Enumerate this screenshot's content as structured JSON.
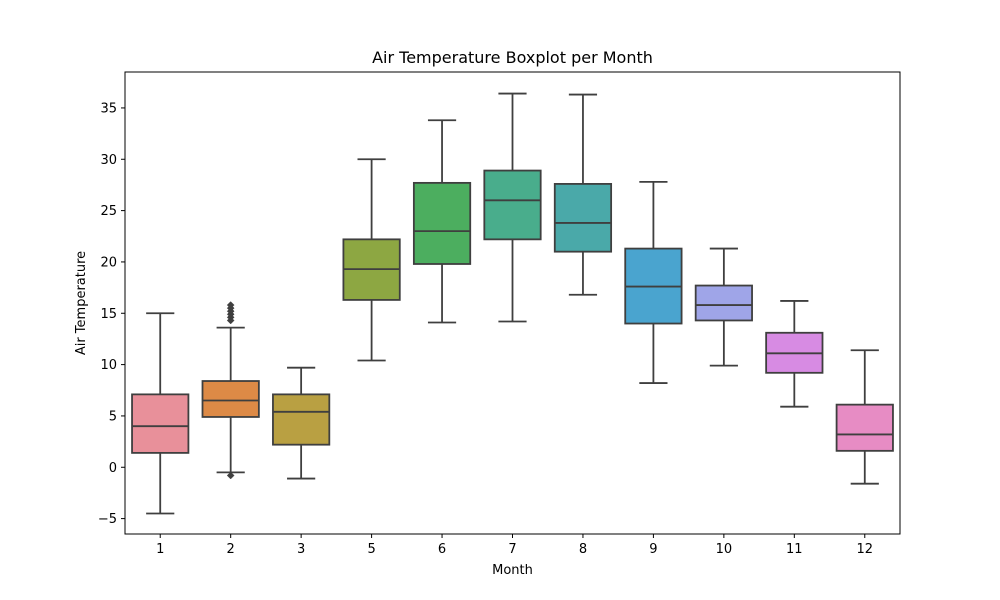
{
  "chart_data": {
    "type": "box",
    "title": "Air Temperature Boxplot per Month",
    "xlabel": "Month",
    "ylabel": "Air Temperature",
    "ylim": [
      -6.5,
      38.5
    ],
    "yticks": [
      -5,
      0,
      5,
      10,
      15,
      20,
      25,
      30,
      35
    ],
    "ytick_labels": [
      "−5",
      "0",
      "5",
      "10",
      "15",
      "20",
      "25",
      "30",
      "35"
    ],
    "grid": false,
    "legend": "none",
    "categories": [
      "1",
      "2",
      "3",
      "5",
      "6",
      "7",
      "8",
      "9",
      "10",
      "11",
      "12"
    ],
    "boxes": [
      {
        "category": "1",
        "whisker_low": -4.5,
        "q1": 1.4,
        "median": 4.0,
        "q3": 7.1,
        "whisker_high": 15.0,
        "outliers": [],
        "color": "#e8909a"
      },
      {
        "category": "2",
        "whisker_low": -0.5,
        "q1": 4.9,
        "median": 6.5,
        "q3": 8.4,
        "whisker_high": 13.6,
        "outliers": [
          -0.8,
          14.3,
          14.6,
          14.9,
          15.2,
          15.5,
          15.8
        ],
        "color": "#dd8a46"
      },
      {
        "category": "3",
        "whisker_low": -1.1,
        "q1": 2.2,
        "median": 5.4,
        "q3": 7.1,
        "whisker_high": 9.7,
        "outliers": [],
        "color": "#b9a042"
      },
      {
        "category": "5",
        "whisker_low": 10.4,
        "q1": 16.3,
        "median": 19.3,
        "q3": 22.2,
        "whisker_high": 30.0,
        "outliers": [],
        "color": "#8da742"
      },
      {
        "category": "6",
        "whisker_low": 14.1,
        "q1": 19.8,
        "median": 23.0,
        "q3": 27.7,
        "whisker_high": 33.8,
        "outliers": [],
        "color": "#4cae5f"
      },
      {
        "category": "7",
        "whisker_low": 14.2,
        "q1": 22.2,
        "median": 26.0,
        "q3": 28.9,
        "whisker_high": 36.4,
        "outliers": [],
        "color": "#49ad8c"
      },
      {
        "category": "8",
        "whisker_low": 16.8,
        "q1": 21.0,
        "median": 23.8,
        "q3": 27.6,
        "whisker_high": 36.3,
        "outliers": [],
        "color": "#4aa9a9"
      },
      {
        "category": "9",
        "whisker_low": 8.2,
        "q1": 14.0,
        "median": 17.6,
        "q3": 21.3,
        "whisker_high": 27.8,
        "outliers": [],
        "color": "#4aa4cf"
      },
      {
        "category": "10",
        "whisker_low": 9.9,
        "q1": 14.3,
        "median": 15.8,
        "q3": 17.7,
        "whisker_high": 21.3,
        "outliers": [],
        "color": "#9fa5e8"
      },
      {
        "category": "11",
        "whisker_low": 5.9,
        "q1": 9.2,
        "median": 11.1,
        "q3": 13.1,
        "whisker_high": 16.2,
        "outliers": [],
        "color": "#d78be3"
      },
      {
        "category": "12",
        "whisker_low": -1.6,
        "q1": 1.6,
        "median": 3.2,
        "q3": 6.1,
        "whisker_high": 11.4,
        "outliers": [],
        "color": "#e78cc4"
      }
    ]
  }
}
